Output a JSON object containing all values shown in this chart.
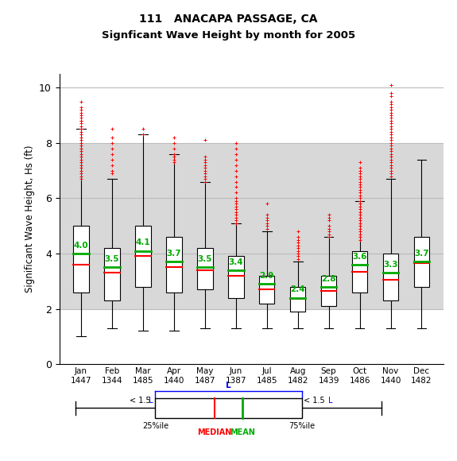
{
  "title_line1": "111   ANACAPA PASSAGE, CA",
  "title_line2": "Signficant Wave Height by month for 2005",
  "ylabel": "Significant Wave Height, Hs (ft)",
  "months": [
    "Jan",
    "Feb",
    "Mar",
    "Apr",
    "May",
    "Jun",
    "Jul",
    "Aug",
    "Sep",
    "Oct",
    "Nov",
    "Dec"
  ],
  "counts": [
    1447,
    1344,
    1485,
    1440,
    1487,
    1387,
    1485,
    1482,
    1439,
    1486,
    1440,
    1482
  ],
  "means": [
    4.0,
    3.5,
    4.1,
    3.7,
    3.5,
    3.4,
    2.9,
    2.4,
    2.8,
    3.6,
    3.3,
    3.7
  ],
  "medians": [
    3.6,
    3.3,
    3.9,
    3.5,
    3.4,
    3.2,
    2.7,
    2.35,
    2.65,
    3.35,
    3.05,
    3.65
  ],
  "q1": [
    2.6,
    2.3,
    2.8,
    2.6,
    2.7,
    2.4,
    2.2,
    1.9,
    2.1,
    2.6,
    2.3,
    2.8
  ],
  "q3": [
    5.0,
    4.2,
    5.0,
    4.6,
    4.2,
    3.9,
    3.2,
    2.8,
    3.2,
    4.1,
    4.0,
    4.6
  ],
  "whisker_low": [
    1.0,
    1.3,
    1.2,
    1.2,
    1.3,
    1.3,
    1.3,
    1.3,
    1.3,
    1.3,
    1.3,
    1.3
  ],
  "whisker_high": [
    8.5,
    6.7,
    8.3,
    7.6,
    6.6,
    5.1,
    4.8,
    3.7,
    4.6,
    5.9,
    6.7,
    7.4
  ],
  "outliers": [
    [
      9.5,
      9.3,
      9.2,
      9.1,
      9.0,
      8.9,
      8.8,
      8.8,
      8.7,
      8.6,
      8.5,
      8.5,
      8.4,
      8.3,
      8.2,
      8.1,
      8.0,
      7.9,
      7.8,
      7.7,
      7.6,
      7.5,
      7.4,
      7.3,
      7.2,
      7.1,
      7.0,
      6.9,
      6.8,
      6.7
    ],
    [
      8.5,
      8.2,
      8.0,
      7.8,
      7.6,
      7.4,
      7.2,
      7.0,
      6.9
    ],
    [
      8.5,
      8.3
    ],
    [
      8.2,
      8.0,
      7.8,
      7.6,
      7.5,
      7.4,
      7.3
    ],
    [
      8.1,
      7.5,
      7.4,
      7.3,
      7.2,
      7.1,
      7.0,
      6.9,
      6.8,
      6.7,
      6.6
    ],
    [
      8.0,
      7.8,
      7.6,
      7.4,
      7.2,
      7.0,
      6.8,
      6.6,
      6.4,
      6.2,
      6.0,
      5.9,
      5.8,
      5.7,
      5.6,
      5.5,
      5.4,
      5.3,
      5.2,
      5.1
    ],
    [
      5.8,
      5.4,
      5.3,
      5.2,
      5.1,
      5.0,
      4.9
    ],
    [
      4.8,
      4.6,
      4.5,
      4.4,
      4.3,
      4.2,
      4.1,
      4.0,
      3.9,
      3.8
    ],
    [
      5.4,
      5.3,
      5.2,
      5.0,
      4.9,
      4.8,
      4.7,
      4.6
    ],
    [
      7.3,
      7.1,
      7.0,
      6.9,
      6.8,
      6.7,
      6.6,
      6.5,
      6.4,
      6.3,
      6.2,
      6.1,
      6.0,
      5.9,
      5.8,
      5.7,
      5.6,
      5.5,
      5.4,
      5.3,
      5.2,
      5.1,
      5.0,
      4.9,
      4.8,
      4.7,
      4.6,
      4.5
    ],
    [
      10.1,
      9.8,
      9.7,
      9.5,
      9.4,
      9.3,
      9.2,
      9.1,
      9.0,
      8.9,
      8.8,
      8.7,
      8.6,
      8.5,
      8.4,
      8.3,
      8.2,
      8.1,
      8.0,
      7.9,
      7.8,
      7.7,
      7.6,
      7.5,
      7.4,
      7.3,
      7.2,
      7.1,
      7.0,
      6.9,
      6.8
    ],
    []
  ],
  "ylim": [
    0,
    10.5
  ],
  "band_low": 2.0,
  "band_high": 8.0,
  "box_color": "white",
  "median_color": "#ff0000",
  "mean_color": "#00aa00",
  "outlier_color": "#ff0000",
  "whisker_color": "black",
  "band_color": "#d8d8d8",
  "box_edge_color": "black",
  "background_color": "white",
  "title_color": "black",
  "grid_color": "#bbbbbb"
}
